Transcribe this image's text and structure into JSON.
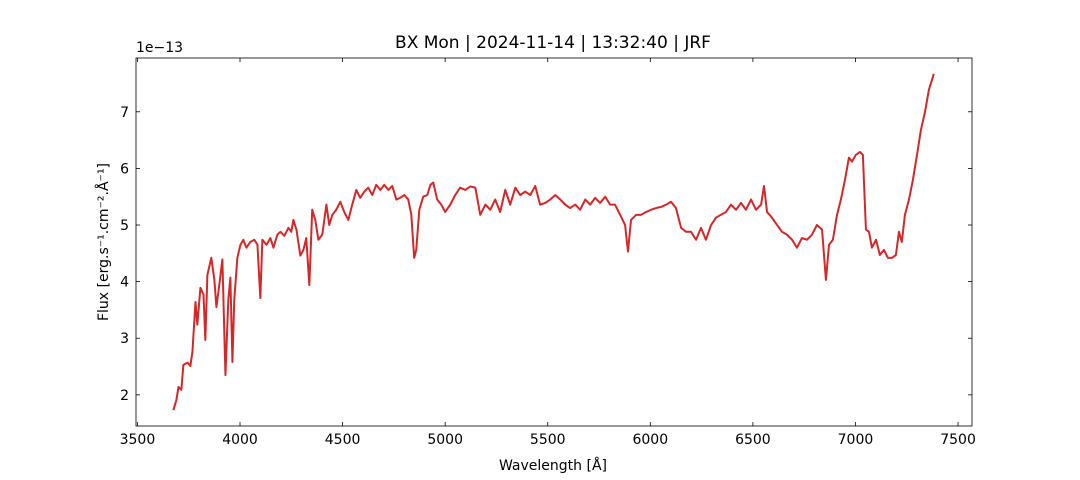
{
  "chart_data": {
    "type": "line",
    "title": "BX Mon | 2024-11-14 | 13:32:40 | JRF",
    "x_label": "Wavelength [Å]",
    "y_label": "Flux [erg.s⁻¹.cm⁻².Å⁻¹]",
    "offset_label": "1e−13",
    "xlim": [
      3493,
      7568
    ],
    "ylim": [
      1.45,
      7.95
    ],
    "xticks": [
      3500,
      4000,
      4500,
      5000,
      5500,
      6000,
      6500,
      7000,
      7500
    ],
    "yticks": [
      2,
      3,
      4,
      5,
      6,
      7
    ],
    "tick_direction": "in",
    "series": [
      {
        "color": "#d62728",
        "x": [
          3675,
          3690,
          3700,
          3714,
          3724,
          3744,
          3758,
          3768,
          3783,
          3792,
          3807,
          3822,
          3831,
          3841,
          3860,
          3875,
          3885,
          3899,
          3914,
          3929,
          3943,
          3953,
          3963,
          3972,
          3987,
          4002,
          4016,
          4031,
          4050,
          4070,
          4085,
          4099,
          4109,
          4129,
          4148,
          4163,
          4182,
          4197,
          4216,
          4236,
          4250,
          4260,
          4275,
          4294,
          4309,
          4323,
          4338,
          4352,
          4367,
          4382,
          4401,
          4421,
          4435,
          4450,
          4469,
          4489,
          4508,
          4528,
          4547,
          4567,
          4586,
          4606,
          4625,
          4645,
          4664,
          4684,
          4703,
          4723,
          4742,
          4762,
          4781,
          4801,
          4820,
          4835,
          4849,
          4859,
          4874,
          4893,
          4913,
          4928,
          4942,
          4961,
          4981,
          5000,
          5025,
          5049,
          5073,
          5098,
          5122,
          5147,
          5171,
          5196,
          5220,
          5244,
          5268,
          5293,
          5317,
          5342,
          5366,
          5390,
          5415,
          5439,
          5463,
          5488,
          5512,
          5537,
          5561,
          5585,
          5609,
          5634,
          5658,
          5683,
          5707,
          5731,
          5755,
          5780,
          5804,
          5828,
          5853,
          5877,
          5891,
          5906,
          5931,
          5955,
          5979,
          6004,
          6028,
          6052,
          6077,
          6101,
          6125,
          6150,
          6174,
          6198,
          6223,
          6247,
          6271,
          6296,
          6320,
          6344,
          6369,
          6393,
          6418,
          6442,
          6466,
          6491,
          6515,
          6540,
          6554,
          6569,
          6593,
          6618,
          6642,
          6666,
          6691,
          6715,
          6739,
          6764,
          6788,
          6812,
          6837,
          6856,
          6871,
          6890,
          6910,
          6929,
          6949,
          6968,
          6983,
          7002,
          7022,
          7036,
          7051,
          7066,
          7080,
          7100,
          7119,
          7139,
          7158,
          7178,
          7197,
          7212,
          7226,
          7241,
          7261,
          7280,
          7300,
          7319,
          7339,
          7358,
          7382
        ],
        "values": [
          1.73,
          1.91,
          2.14,
          2.09,
          2.53,
          2.57,
          2.51,
          2.76,
          3.64,
          3.24,
          3.89,
          3.77,
          2.97,
          4.12,
          4.42,
          4.03,
          3.55,
          3.94,
          4.39,
          2.35,
          3.68,
          4.07,
          2.58,
          3.68,
          4.42,
          4.65,
          4.74,
          4.6,
          4.7,
          4.74,
          4.65,
          3.71,
          4.74,
          4.65,
          4.77,
          4.6,
          4.83,
          4.88,
          4.81,
          4.95,
          4.88,
          5.09,
          4.92,
          4.46,
          4.56,
          4.77,
          3.94,
          5.27,
          5.09,
          4.74,
          4.83,
          5.36,
          5.0,
          5.18,
          5.27,
          5.41,
          5.23,
          5.09,
          5.36,
          5.62,
          5.48,
          5.59,
          5.66,
          5.53,
          5.71,
          5.62,
          5.71,
          5.62,
          5.69,
          5.45,
          5.48,
          5.53,
          5.45,
          5.18,
          4.42,
          4.56,
          5.27,
          5.5,
          5.53,
          5.71,
          5.75,
          5.45,
          5.36,
          5.23,
          5.36,
          5.53,
          5.66,
          5.62,
          5.68,
          5.66,
          5.18,
          5.36,
          5.27,
          5.45,
          5.23,
          5.62,
          5.36,
          5.66,
          5.53,
          5.59,
          5.53,
          5.69,
          5.36,
          5.39,
          5.45,
          5.53,
          5.45,
          5.36,
          5.3,
          5.36,
          5.27,
          5.45,
          5.36,
          5.48,
          5.39,
          5.5,
          5.36,
          5.36,
          5.18,
          5.0,
          4.53,
          5.09,
          5.18,
          5.18,
          5.23,
          5.27,
          5.3,
          5.32,
          5.36,
          5.41,
          5.3,
          4.95,
          4.88,
          4.88,
          4.74,
          4.95,
          4.74,
          5.0,
          5.13,
          5.18,
          5.23,
          5.36,
          5.27,
          5.39,
          5.27,
          5.45,
          5.27,
          5.36,
          5.69,
          5.23,
          5.13,
          5.0,
          4.88,
          4.83,
          4.74,
          4.6,
          4.77,
          4.74,
          4.83,
          5.0,
          4.92,
          4.03,
          4.65,
          4.74,
          5.18,
          5.45,
          5.8,
          6.19,
          6.12,
          6.24,
          6.29,
          6.24,
          4.92,
          4.88,
          4.6,
          4.74,
          4.47,
          4.56,
          4.42,
          4.42,
          4.47,
          4.88,
          4.7,
          5.18,
          5.45,
          5.8,
          6.24,
          6.68,
          7.0,
          7.39,
          7.67
        ]
      }
    ]
  }
}
